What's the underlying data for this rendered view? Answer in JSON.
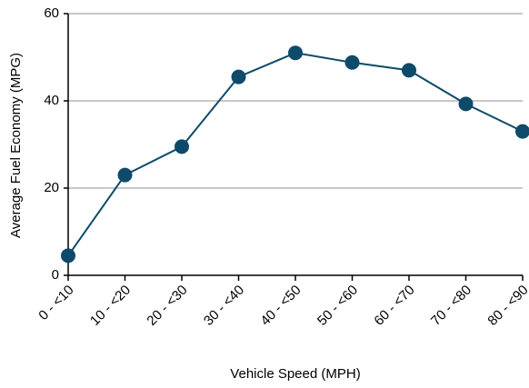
{
  "chart_data": {
    "type": "line",
    "x_label": "Vehicle Speed (MPH)",
    "y_label": "Average Fuel Economy (MPG)",
    "categories": [
      "0 - <10",
      "10 - <20",
      "20 - <30",
      "30 - <40",
      "40 - <50",
      "50 - <60",
      "60 - <70",
      "70 - <80",
      "80 - <90"
    ],
    "values": [
      4.5,
      23,
      29.5,
      45.5,
      51,
      48.8,
      47,
      39.3,
      33
    ],
    "color": "#0e4a6a",
    "ylim": [
      0,
      60
    ],
    "yticks": [
      0,
      20,
      40,
      60
    ],
    "grid": true
  }
}
